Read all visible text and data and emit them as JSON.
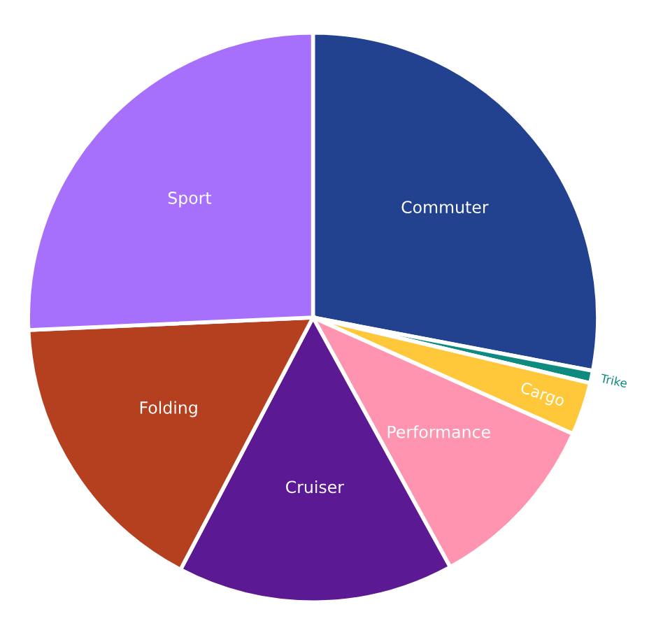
{
  "chart_data": {
    "type": "pie",
    "categories": [
      "Commuter",
      "Trike",
      "Cargo",
      "Performance",
      "Cruiser",
      "Folding",
      "Sport"
    ],
    "values": [
      28,
      0.7,
      3,
      10.3,
      15.7,
      16.6,
      25.7
    ],
    "colors": [
      "#22418f",
      "#0f8a7f",
      "#ffc83a",
      "#ff94b0",
      "#5b1a93",
      "#b5401f",
      "#a66ffc"
    ]
  }
}
